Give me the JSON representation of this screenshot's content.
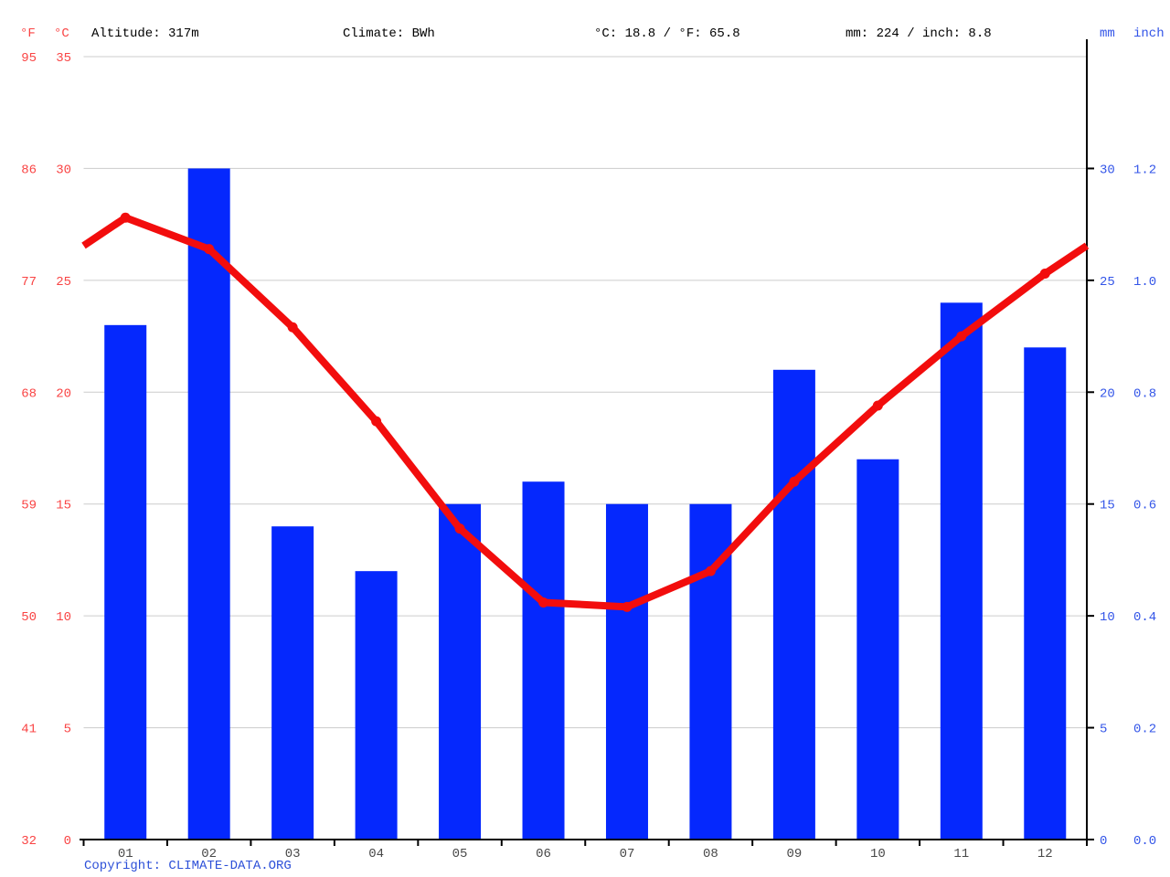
{
  "header": {
    "f_unit": "°F",
    "c_unit": "°C",
    "altitude": "Altitude: 317m",
    "climate": "Climate: BWh",
    "temp_summary": "°C: 18.8 / °F: 65.8",
    "precip_summary": "mm: 224 / inch: 8.8",
    "mm_unit": "mm",
    "inch_unit": "inch"
  },
  "footer": {
    "copyright": "Copyright: CLIMATE-DATA.ORG"
  },
  "colors": {
    "bar_blue": "#0528fd",
    "line_red": "#f20d0d",
    "left_axis_red": "#f94444",
    "right_axis_blue": "#3355e8",
    "gridline_gray": "#cccccc",
    "axis_black": "#000000",
    "month_label_gray": "#484848",
    "copyright_blue": "#2d50d8"
  },
  "chart_data": {
    "type": "bar",
    "subtype": "climate-chart (precipitation bars + temperature line)",
    "categories": [
      "01",
      "02",
      "03",
      "04",
      "05",
      "06",
      "07",
      "08",
      "09",
      "10",
      "11",
      "12"
    ],
    "series": [
      {
        "name": "Precipitation (mm)",
        "type": "bar",
        "values": [
          23,
          30,
          14,
          12,
          15,
          16,
          15,
          15,
          21,
          17,
          24,
          22
        ],
        "total_mm": 224,
        "total_inch": 8.8
      },
      {
        "name": "Temperature (°C)",
        "type": "line",
        "values": [
          27.8,
          26.4,
          22.9,
          18.7,
          13.9,
          10.6,
          10.4,
          12.0,
          16.0,
          19.4,
          22.5,
          25.3
        ],
        "edge_value": 26.55,
        "annual_mean_c": 18.8,
        "annual_mean_f": 65.8
      }
    ],
    "axes": {
      "left_f_ticks": [
        "95",
        "86",
        "77",
        "68",
        "59",
        "50",
        "41",
        "32"
      ],
      "left_c_ticks": [
        "35",
        "30",
        "25",
        "20",
        "15",
        "10",
        "5",
        "0"
      ],
      "right_mm_ticks": [
        "30",
        "25",
        "20",
        "15",
        "10",
        "5",
        "0"
      ],
      "right_inch_ticks": [
        "1.2",
        "1.0",
        "0.8",
        "0.6",
        "0.4",
        "0.2",
        "0.0"
      ],
      "c_min": 0,
      "c_max": 35,
      "grid_step_c": 5,
      "grid_on": true
    },
    "title": "",
    "xlabel": "",
    "ylabel_left": "°F / °C",
    "ylabel_right": "mm / inch"
  }
}
